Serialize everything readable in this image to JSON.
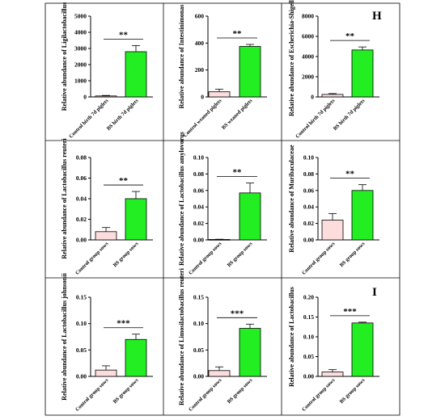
{
  "colors": {
    "control": "#fcdcdc",
    "treated": "#22ee22"
  },
  "panel_letters": [
    "H",
    "I"
  ],
  "chart_data": [
    {
      "type": "bar",
      "ylabel": "Relative abundance of Ligilactobacillus",
      "categories": [
        "Control birth 7d piglets",
        "BS birth 7d piglets"
      ],
      "values": [
        60,
        2800
      ],
      "errors": [
        30,
        380
      ],
      "ylim": [
        0,
        5000
      ],
      "yticks": [
        0,
        1000,
        2000,
        3000,
        4000,
        5000
      ],
      "yticklabels": [
        "0",
        "1000",
        "2000",
        "3000",
        "4000",
        "5000"
      ],
      "significance": "**"
    },
    {
      "type": "bar",
      "ylabel": "Relative abundance of Intestinimonas",
      "categories": [
        "Control weaned piglets",
        "BS weaned piglets"
      ],
      "values": [
        38,
        375
      ],
      "errors": [
        20,
        15
      ],
      "ylim": [
        0,
        600
      ],
      "yticks": [
        0,
        200,
        400,
        600
      ],
      "yticklabels": [
        "0",
        "200",
        "400",
        "600"
      ],
      "significance": "**"
    },
    {
      "type": "bar",
      "ylabel": "Relative abundance of Escherichia-Shigella",
      "categories": [
        "Control birth 7d piglets",
        "BS birth 7d piglets"
      ],
      "values": [
        250,
        4650
      ],
      "errors": [
        80,
        300
      ],
      "ylim": [
        0,
        8000
      ],
      "yticks": [
        0,
        2000,
        4000,
        6000,
        8000
      ],
      "yticklabels": [
        "0",
        "2000",
        "4000",
        "6000",
        "8000"
      ],
      "significance": "**"
    },
    {
      "type": "bar",
      "ylabel": "Relative abundance of Lactobacillus reuteri",
      "categories": [
        "Control group sows",
        "BS group sows"
      ],
      "values": [
        0.008,
        0.04
      ],
      "errors": [
        0.004,
        0.007
      ],
      "ylim": [
        0,
        0.08
      ],
      "yticks": [
        0,
        0.02,
        0.04,
        0.06,
        0.08
      ],
      "yticklabels": [
        "0.00",
        "0.02",
        "0.04",
        "0.06",
        "0.08"
      ],
      "significance": "**"
    },
    {
      "type": "bar",
      "ylabel": "Relative abundance of Lactobacillus amylovorus",
      "categories": [
        "Control group sows",
        "BS group sows"
      ],
      "values": [
        0.0005,
        0.057
      ],
      "errors": [
        0.0003,
        0.012
      ],
      "ylim": [
        0,
        0.1
      ],
      "yticks": [
        0,
        0.02,
        0.04,
        0.06,
        0.08,
        0.1
      ],
      "yticklabels": [
        "0.00",
        "0.02",
        "0.04",
        "0.06",
        "0.08",
        "0.10"
      ],
      "significance": "**"
    },
    {
      "type": "bar",
      "ylabel": "Relative abundance of Muribaculaceae",
      "categories": [
        "Control group sows",
        "BS group sows"
      ],
      "values": [
        0.024,
        0.06
      ],
      "errors": [
        0.008,
        0.007
      ],
      "ylim": [
        0,
        0.1
      ],
      "yticks": [
        0,
        0.02,
        0.04,
        0.06,
        0.08,
        0.1
      ],
      "yticklabels": [
        "0.00",
        "0.02",
        "0.04",
        "0.06",
        "0.08",
        "0.10"
      ],
      "significance": "**"
    },
    {
      "type": "bar",
      "ylabel": "Relative abundance of Lactobacillus johnsonii",
      "categories": [
        "Control group sows",
        "BS group sows"
      ],
      "values": [
        0.012,
        0.07
      ],
      "errors": [
        0.008,
        0.01
      ],
      "ylim": [
        0,
        0.15
      ],
      "yticks": [
        0,
        0.05,
        0.1,
        0.15
      ],
      "yticklabels": [
        "0.00",
        "0.05",
        "0.10",
        "0.15"
      ],
      "significance": "***"
    },
    {
      "type": "bar",
      "ylabel": "Relative abundance of Limosilactobacillus reuteri",
      "categories": [
        "Control group sows",
        "BS group sows"
      ],
      "values": [
        0.011,
        0.091
      ],
      "errors": [
        0.007,
        0.008
      ],
      "ylim": [
        0,
        0.15
      ],
      "yticks": [
        0,
        0.05,
        0.1,
        0.15
      ],
      "yticklabels": [
        "0.00",
        "0.05",
        "0.10",
        "0.15"
      ],
      "significance": "***"
    },
    {
      "type": "bar",
      "ylabel": "Relative abundance of Lactobacillus",
      "categories": [
        "Control group sows",
        "BS group sows"
      ],
      "values": [
        0.011,
        0.135
      ],
      "errors": [
        0.006,
        0.002
      ],
      "ylim": [
        0,
        0.2
      ],
      "yticks": [
        0,
        0.05,
        0.1,
        0.15,
        0.2
      ],
      "yticklabels": [
        "0.00",
        "0.05",
        "0.10",
        "0.15",
        "0.20"
      ],
      "significance": "***"
    }
  ]
}
